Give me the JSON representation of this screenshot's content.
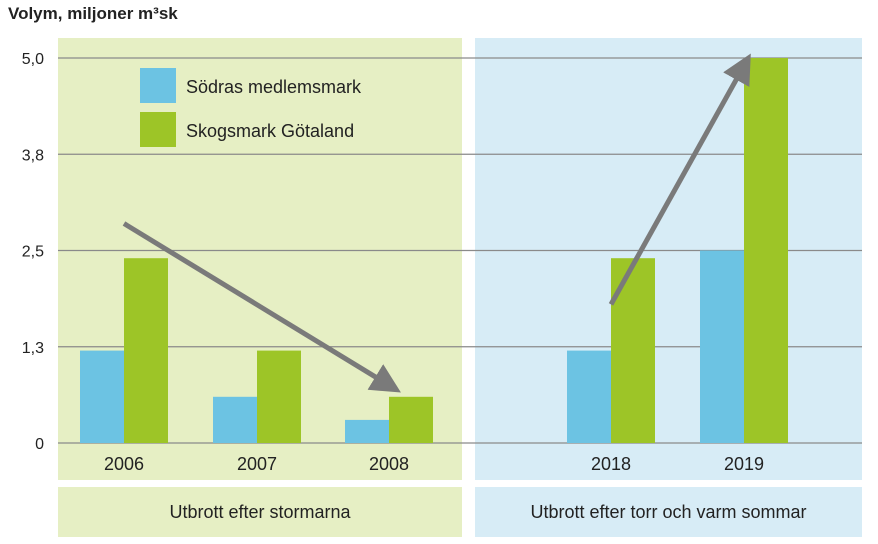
{
  "chart_data": {
    "type": "bar",
    "ylabel": "Volym, miljoner m³sk",
    "yticks": [
      "0",
      "1,3",
      "2,5",
      "3,8",
      "5,0"
    ],
    "ytick_values": [
      0,
      1.25,
      2.5,
      3.75,
      5.0
    ],
    "ylim": [
      0,
      5.0
    ],
    "grid": true,
    "legend_position": "top-left",
    "groups": [
      {
        "label": "Utbrott efter stormarna",
        "color": "#e6efc4",
        "categories": [
          "2006",
          "2007",
          "2008"
        ]
      },
      {
        "label": "Utbrott efter torr och varm sommar",
        "color": "#d7ecf6",
        "categories": [
          "2018",
          "2019"
        ]
      }
    ],
    "categories": [
      "2006",
      "2007",
      "2008",
      "2018",
      "2019"
    ],
    "series": [
      {
        "name": "Södras medlemsmark",
        "color": "#6cc3e3",
        "values": [
          1.2,
          0.6,
          0.3,
          1.2,
          2.5
        ]
      },
      {
        "name": "Skogsmark Götaland",
        "color": "#9dc527",
        "values": [
          2.4,
          1.2,
          0.6,
          2.4,
          5.0
        ]
      }
    ],
    "trend_arrows": [
      {
        "from": [
          "2006",
          2.85
        ],
        "to": [
          "2008",
          0.75
        ],
        "color": "#7a7a7a"
      },
      {
        "from": [
          "2018",
          1.8
        ],
        "to": [
          "2019",
          4.9
        ],
        "color": "#7a7a7a"
      }
    ]
  }
}
